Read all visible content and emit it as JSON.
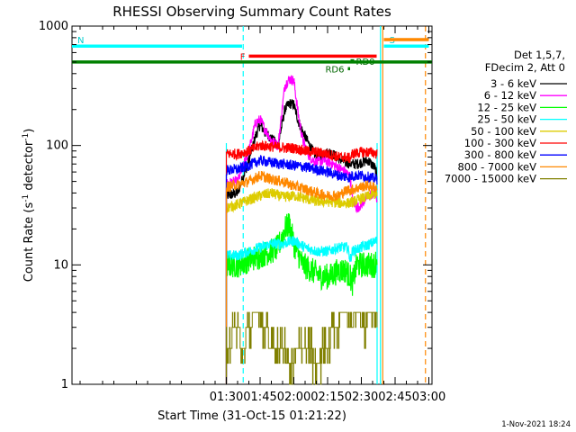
{
  "chart_data": {
    "type": "line",
    "title": "RHESSI Observing Summary Count Rates",
    "xlabel": "Start Time (31-Oct-15 01:21:22)",
    "ylabel_main": "Count Rate (s",
    "ylabel_sup1": "-1",
    "ylabel_mid": " detector",
    "ylabel_sup2": "-1",
    "ylabel_end": ")",
    "y_scale": "log",
    "xlim_minutes": [
      21.4,
      181.4
    ],
    "ylim": [
      1,
      1000
    ],
    "x_ticks": [
      {
        "label": "01:30",
        "t": 90
      },
      {
        "label": "01:45",
        "t": 105
      },
      {
        "label": "02:00",
        "t": 120
      },
      {
        "label": "02:15",
        "t": 135
      },
      {
        "label": "02:30",
        "t": 150
      },
      {
        "label": "02:45",
        "t": 165
      },
      {
        "label": "03:00",
        "t": 180
      }
    ],
    "y_ticks": [
      {
        "label": "1",
        "v": 1
      },
      {
        "label": "10",
        "v": 10
      },
      {
        "label": "100",
        "v": 100
      },
      {
        "label": "1000",
        "v": 1000
      }
    ],
    "legend_header": [
      "Det 1,5,7,",
      "FDecim 2, Att 0"
    ],
    "legend_position": "right",
    "timestamp": "1-Nov-2021 18:24",
    "series": [
      {
        "name": "3 - 6 keV",
        "color": "#000000",
        "points": [
          [
            90,
            38
          ],
          [
            95,
            40
          ],
          [
            100,
            75
          ],
          [
            103,
            120
          ],
          [
            105,
            150
          ],
          [
            107,
            130
          ],
          [
            110,
            115
          ],
          [
            113,
            100
          ],
          [
            116,
            200
          ],
          [
            118,
            225
          ],
          [
            120,
            220
          ],
          [
            122,
            160
          ],
          [
            124,
            130
          ],
          [
            127,
            100
          ],
          [
            130,
            80
          ],
          [
            133,
            85
          ],
          [
            136,
            88
          ],
          [
            140,
            78
          ],
          [
            143,
            72
          ],
          [
            146,
            70
          ],
          [
            148,
            70
          ],
          [
            150,
            72
          ],
          [
            153,
            75
          ],
          [
            156,
            65
          ],
          [
            157,
            55
          ]
        ]
      },
      {
        "name": "6 - 12 keV",
        "color": "#ff00ff",
        "points": [
          [
            90,
            48
          ],
          [
            95,
            50
          ],
          [
            100,
            90
          ],
          [
            103,
            155
          ],
          [
            105,
            165
          ],
          [
            107,
            140
          ],
          [
            110,
            110
          ],
          [
            113,
            100
          ],
          [
            116,
            320
          ],
          [
            118,
            360
          ],
          [
            120,
            350
          ],
          [
            122,
            180
          ],
          [
            124,
            110
          ],
          [
            127,
            80
          ],
          [
            130,
            72
          ],
          [
            133,
            75
          ],
          [
            136,
            72
          ],
          [
            140,
            65
          ],
          [
            143,
            60
          ],
          [
            145,
            55
          ],
          [
            146,
            35
          ],
          [
            148,
            30
          ],
          [
            150,
            32
          ],
          [
            153,
            38
          ],
          [
            156,
            40
          ],
          [
            157,
            35
          ]
        ]
      },
      {
        "name": "12 - 25 keV",
        "color": "#00ff00",
        "points": [
          [
            90,
            10
          ],
          [
            95,
            10
          ],
          [
            100,
            11
          ],
          [
            105,
            12
          ],
          [
            110,
            13
          ],
          [
            113,
            14
          ],
          [
            116,
            20
          ],
          [
            118,
            22
          ],
          [
            120,
            15
          ],
          [
            124,
            10
          ],
          [
            128,
            9
          ],
          [
            132,
            8
          ],
          [
            136,
            8
          ],
          [
            140,
            9
          ],
          [
            143,
            9
          ],
          [
            145,
            8
          ],
          [
            146,
            7
          ],
          [
            148,
            10
          ],
          [
            150,
            10
          ],
          [
            153,
            10
          ],
          [
            156,
            10
          ],
          [
            157,
            12
          ]
        ]
      },
      {
        "name": "25 - 50 keV",
        "color": "#00ffff",
        "points": [
          [
            90,
            12
          ],
          [
            95,
            12
          ],
          [
            100,
            13
          ],
          [
            105,
            14
          ],
          [
            110,
            15
          ],
          [
            115,
            15
          ],
          [
            120,
            16
          ],
          [
            125,
            14
          ],
          [
            130,
            13
          ],
          [
            135,
            13
          ],
          [
            140,
            14
          ],
          [
            144,
            14
          ],
          [
            145,
            11
          ],
          [
            146,
            13
          ],
          [
            150,
            14
          ],
          [
            154,
            15
          ],
          [
            157,
            16
          ]
        ]
      },
      {
        "name": "50 - 100 keV",
        "color": "#ddcc00",
        "points": [
          [
            90,
            30
          ],
          [
            95,
            32
          ],
          [
            100,
            35
          ],
          [
            105,
            38
          ],
          [
            110,
            40
          ],
          [
            115,
            37
          ],
          [
            120,
            38
          ],
          [
            125,
            36
          ],
          [
            130,
            34
          ],
          [
            135,
            34
          ],
          [
            140,
            33
          ],
          [
            145,
            33
          ],
          [
            150,
            36
          ],
          [
            154,
            38
          ],
          [
            157,
            40
          ]
        ]
      },
      {
        "name": "100 - 300 keV",
        "color": "#ff0000",
        "points": [
          [
            90,
            85
          ],
          [
            95,
            85
          ],
          [
            100,
            90
          ],
          [
            105,
            100
          ],
          [
            110,
            98
          ],
          [
            115,
            96
          ],
          [
            120,
            95
          ],
          [
            125,
            90
          ],
          [
            130,
            88
          ],
          [
            135,
            85
          ],
          [
            140,
            80
          ],
          [
            143,
            80
          ],
          [
            145,
            78
          ],
          [
            146,
            85
          ],
          [
            150,
            88
          ],
          [
            154,
            88
          ],
          [
            157,
            85
          ]
        ]
      },
      {
        "name": "300 - 800 keV",
        "color": "#0000ff",
        "points": [
          [
            90,
            62
          ],
          [
            95,
            63
          ],
          [
            100,
            68
          ],
          [
            105,
            75
          ],
          [
            110,
            72
          ],
          [
            115,
            70
          ],
          [
            120,
            68
          ],
          [
            125,
            66
          ],
          [
            130,
            63
          ],
          [
            135,
            60
          ],
          [
            140,
            56
          ],
          [
            145,
            54
          ],
          [
            146,
            56
          ],
          [
            150,
            56
          ],
          [
            154,
            54
          ],
          [
            157,
            52
          ]
        ]
      },
      {
        "name": "800 - 7000 keV",
        "color": "#ff8800",
        "points": [
          [
            90,
            45
          ],
          [
            95,
            47
          ],
          [
            100,
            50
          ],
          [
            105,
            56
          ],
          [
            110,
            52
          ],
          [
            115,
            50
          ],
          [
            120,
            46
          ],
          [
            125,
            43
          ],
          [
            130,
            40
          ],
          [
            135,
            38
          ],
          [
            140,
            38
          ],
          [
            144,
            43
          ],
          [
            145,
            42
          ],
          [
            148,
            44
          ],
          [
            152,
            46
          ],
          [
            155,
            45
          ],
          [
            157,
            44
          ]
        ]
      },
      {
        "name": "7000 - 15000 keV",
        "color": "#808000",
        "points": [
          [
            90,
            2
          ],
          [
            95,
            3
          ],
          [
            97,
            2
          ],
          [
            100,
            3
          ],
          [
            103,
            4
          ],
          [
            107,
            3
          ],
          [
            110,
            2
          ],
          [
            115,
            2
          ],
          [
            118,
            1.5
          ],
          [
            122,
            2
          ],
          [
            126,
            2
          ],
          [
            130,
            1.5
          ],
          [
            134,
            2
          ],
          [
            138,
            3
          ],
          [
            142,
            4
          ],
          [
            145,
            3
          ],
          [
            148,
            4
          ],
          [
            151,
            3
          ],
          [
            154,
            4
          ],
          [
            157,
            4
          ]
        ]
      }
    ],
    "attenuator_bars": [
      {
        "label": "F",
        "color": "#ff0000",
        "t0": 100,
        "t1": 156.8,
        "value": 560
      },
      {
        "label": "RD0",
        "color": "#008000",
        "t0": 146,
        "t1": 146,
        "value": 510
      },
      {
        "label": "RD6",
        "color": "#008000",
        "t0": 144,
        "t1": 145,
        "value": 440
      },
      {
        "label": "",
        "color": "#008000",
        "t0": 21.4,
        "t1": 181.4,
        "value": 500
      },
      {
        "label": "N",
        "color": "#00ffff",
        "t0": 21.4,
        "t1": 97,
        "value": 680
      },
      {
        "label": "S",
        "color": "#00ffff",
        "t0": 160,
        "t1": 180,
        "value": 680
      },
      {
        "label": "",
        "color": "#ff8800",
        "t0": 160,
        "t1": 180,
        "value": 770
      }
    ],
    "night_markers": [
      {
        "t": 97.5,
        "color": "#00ffff",
        "style": "dashed"
      },
      {
        "t": 178.5,
        "color": "#ff8800",
        "style": "dashed"
      },
      {
        "t": 158.5,
        "color": "#00ffff",
        "style": "solid"
      },
      {
        "t": 159.5,
        "color": "#ff8800",
        "style": "solid"
      }
    ],
    "data_window": [
      90,
      157
    ]
  }
}
